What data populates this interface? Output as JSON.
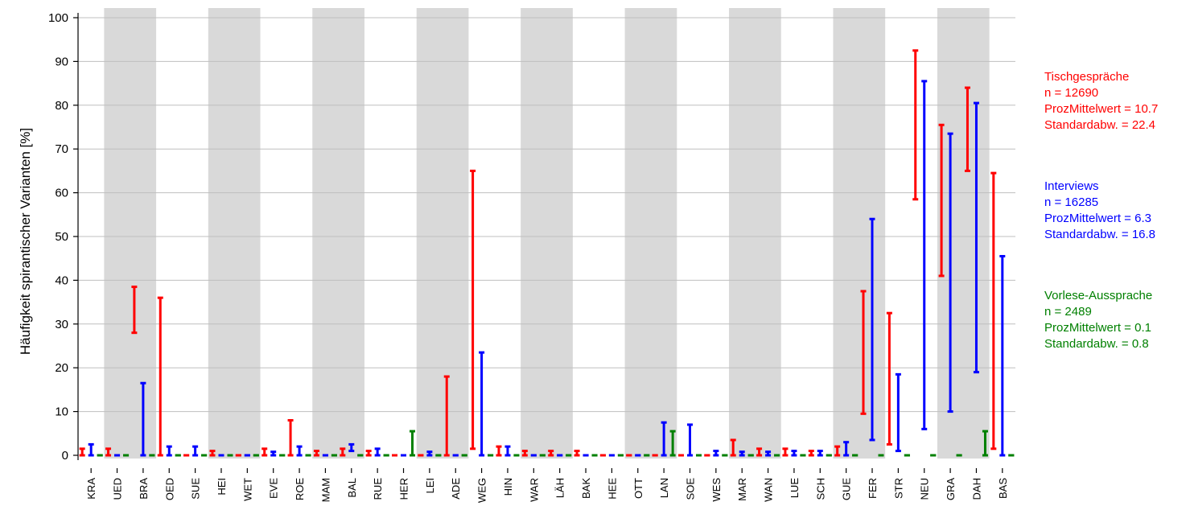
{
  "chart_data": {
    "type": "range",
    "ylabel": "Häufigkeit spirantischer Varianten [%]",
    "ylim": [
      0,
      100
    ],
    "yticks": [
      0,
      10,
      20,
      30,
      40,
      50,
      60,
      70,
      80,
      90,
      100
    ],
    "grid": true,
    "shaded_pairs": true,
    "categories": [
      "KRA",
      "UED",
      "BRA",
      "OED",
      "SUE",
      "HEI",
      "WET",
      "EVE",
      "ROE",
      "MAM",
      "BAL",
      "RUE",
      "HER",
      "LEI",
      "ADE",
      "WEG",
      "HIN",
      "WAR",
      "LÄH",
      "BAK",
      "HEE",
      "OTT",
      "LAN",
      "SOE",
      "WES",
      "MAR",
      "WAN",
      "LUE",
      "SCH",
      "GUE",
      "FER",
      "STR",
      "NEU",
      "GRA",
      "DAH",
      "BAS"
    ],
    "series": [
      {
        "name": "Tischgespräche",
        "color": "#ff0000",
        "ranges": [
          [
            0,
            1.5
          ],
          [
            0,
            1.5
          ],
          [
            28,
            38.5
          ],
          [
            0,
            36
          ],
          [
            0,
            0
          ],
          [
            0,
            1
          ],
          [
            0,
            0
          ],
          [
            0,
            1.5
          ],
          [
            0,
            8
          ],
          [
            0,
            1
          ],
          [
            0,
            1.5
          ],
          [
            0,
            1
          ],
          [
            0,
            0
          ],
          [
            0,
            0
          ],
          [
            0,
            18
          ],
          [
            1.5,
            65
          ],
          [
            0,
            2
          ],
          [
            0,
            1
          ],
          [
            0,
            1
          ],
          [
            0,
            1
          ],
          [
            0,
            0
          ],
          [
            0,
            0
          ],
          [
            0,
            0
          ],
          [
            0,
            0
          ],
          [
            0,
            0
          ],
          [
            0,
            3.5
          ],
          [
            0,
            1.5
          ],
          [
            0,
            1.5
          ],
          [
            0,
            1
          ],
          [
            0,
            2
          ],
          [
            9.5,
            37.5
          ],
          [
            2.5,
            32.5
          ],
          [
            58.5,
            92.5
          ],
          [
            41,
            75.5
          ],
          [
            65,
            84
          ],
          [
            1.5,
            64.5
          ]
        ]
      },
      {
        "name": "Interviews",
        "color": "#0000ff",
        "ranges": [
          [
            0,
            2.5
          ],
          [
            0,
            0
          ],
          [
            0,
            16.5
          ],
          [
            0,
            2
          ],
          [
            0,
            2
          ],
          [
            0,
            0
          ],
          [
            0,
            0
          ],
          [
            0,
            0.8
          ],
          [
            0,
            2
          ],
          [
            0,
            0
          ],
          [
            1,
            2.5
          ],
          [
            0,
            1.5
          ],
          [
            0,
            0
          ],
          [
            0,
            0.8
          ],
          [
            0,
            0
          ],
          [
            0,
            23.5
          ],
          [
            0,
            2
          ],
          [
            0,
            0
          ],
          [
            0,
            0
          ],
          [
            0,
            0
          ],
          [
            0,
            0
          ],
          [
            0,
            0
          ],
          [
            0,
            7.5
          ],
          [
            0,
            7
          ],
          [
            0,
            1
          ],
          [
            0,
            0.8
          ],
          [
            0,
            0.8
          ],
          [
            0,
            1
          ],
          [
            0,
            1
          ],
          [
            0,
            3
          ],
          [
            3.5,
            54
          ],
          [
            1,
            18.5
          ],
          [
            6,
            85.5
          ],
          [
            10,
            73.5
          ],
          [
            19,
            80.5
          ],
          [
            0,
            45.5
          ]
        ]
      },
      {
        "name": "Vorlese-Aussprache",
        "color": "#008000",
        "ranges": [
          [
            0,
            0
          ],
          [
            0,
            0
          ],
          [
            0,
            0
          ],
          [
            0,
            0
          ],
          [
            0,
            0
          ],
          [
            0,
            0
          ],
          [
            0,
            0
          ],
          [
            0,
            0
          ],
          [
            0,
            0
          ],
          [
            0,
            0
          ],
          [
            0,
            0
          ],
          [
            0,
            0
          ],
          [
            0,
            5.5
          ],
          [
            0,
            0
          ],
          [
            0,
            0
          ],
          [
            0,
            0
          ],
          [
            0,
            0
          ],
          [
            0,
            0
          ],
          [
            0,
            0
          ],
          [
            0,
            0
          ],
          [
            0,
            0
          ],
          [
            0,
            0
          ],
          [
            0,
            5.5
          ],
          [
            0,
            0
          ],
          [
            0,
            0
          ],
          [
            0,
            0
          ],
          [
            0,
            0
          ],
          [
            0,
            0
          ],
          [
            0,
            0
          ],
          [
            0,
            0
          ],
          [
            0,
            0
          ],
          [
            0,
            0
          ],
          [
            0,
            0
          ],
          [
            0,
            0
          ],
          [
            0,
            5.5
          ],
          [
            0,
            0
          ]
        ]
      }
    ]
  },
  "legend": [
    {
      "name": "Tischgespräche",
      "n": "n = 12690",
      "mean": "ProzMittelwert = 10.7",
      "sd": "Standardabw. = 22.4",
      "color": "#ff0000"
    },
    {
      "name": "Interviews",
      "n": "n = 16285",
      "mean": "ProzMittelwert = 6.3",
      "sd": "Standardabw. = 16.8",
      "color": "#0000ff"
    },
    {
      "name": "Vorlese-Aussprache",
      "n": "n = 2489",
      "mean": "ProzMittelwert = 0.1",
      "sd": "Standardabw. = 0.8",
      "color": "#008000"
    }
  ]
}
